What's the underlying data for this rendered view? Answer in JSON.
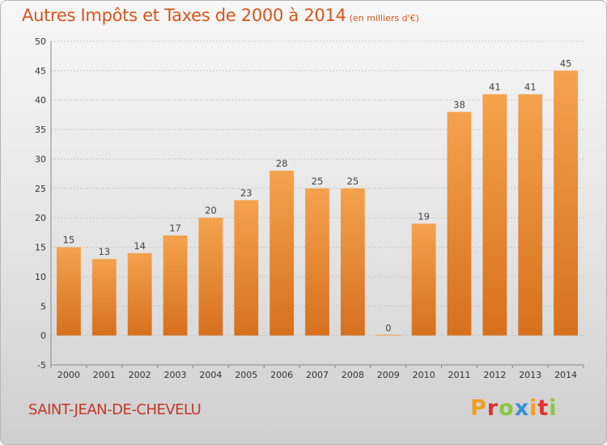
{
  "header": {
    "title": "Autres Impôts et Taxes de 2000 à 2014",
    "unit": "(en milliers d'€)"
  },
  "footer": {
    "commune": "SAINT-JEAN-DE-CHEVELU",
    "logo": [
      "P",
      "r",
      "o",
      "x",
      "i",
      "t",
      "i"
    ]
  },
  "colors": {
    "bar_top": "#f5a24e",
    "bar_bottom": "#d6701e",
    "title": "#d4561a",
    "commune": "#c0392b"
  },
  "chart_data": {
    "type": "bar",
    "categories": [
      "2000",
      "2001",
      "2002",
      "2003",
      "2004",
      "2005",
      "2006",
      "2007",
      "2008",
      "2009",
      "2010",
      "2011",
      "2012",
      "2013",
      "2014"
    ],
    "values": [
      15,
      13,
      14,
      17,
      20,
      23,
      28,
      25,
      25,
      0,
      19,
      38,
      41,
      41,
      45
    ],
    "title": "Autres Impôts et Taxes de 2000 à 2014",
    "ylim": [
      -5,
      50
    ],
    "yticks": [
      -5,
      0,
      5,
      10,
      15,
      20,
      25,
      30,
      35,
      40,
      45,
      50
    ],
    "grid": "horizontal",
    "data_labels": true
  }
}
